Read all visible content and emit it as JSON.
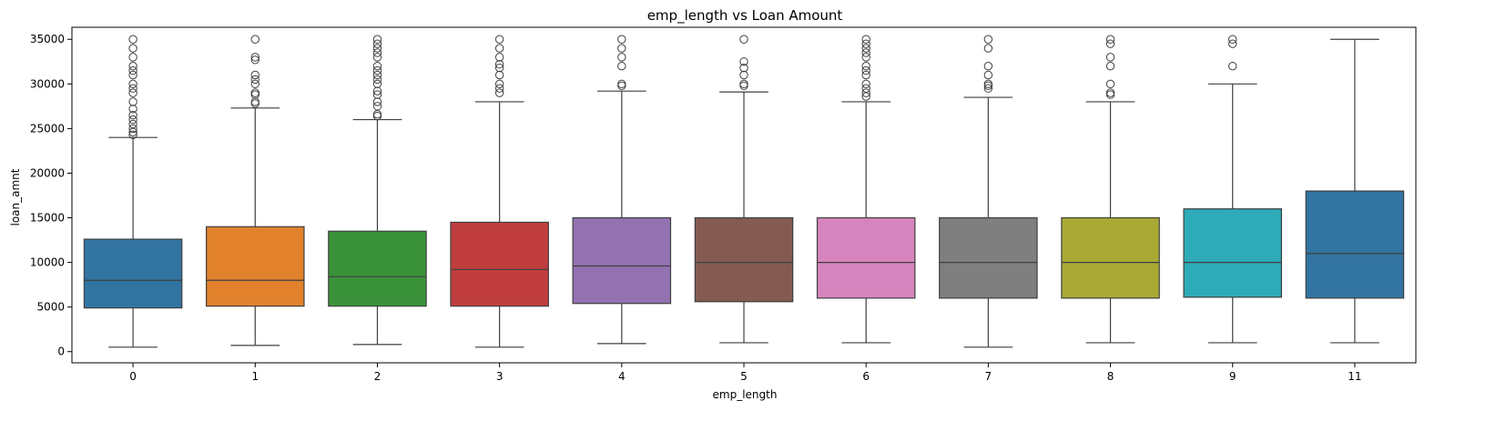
{
  "chart_data": {
    "type": "box",
    "title": "emp_length vs Loan Amount",
    "xlabel": "emp_length",
    "ylabel": "loan_amnt",
    "ylim": [
      -1250,
      36350
    ],
    "yticks": [
      0,
      5000,
      10000,
      15000,
      20000,
      25000,
      30000,
      35000
    ],
    "grid": false,
    "categories": [
      "0",
      "1",
      "2",
      "3",
      "4",
      "5",
      "6",
      "7",
      "8",
      "9",
      "11"
    ],
    "colors": [
      "#3274a1",
      "#e1812c",
      "#3a923a",
      "#c03d3e",
      "#9372b2",
      "#845b53",
      "#d684bd",
      "#7f7f7f",
      "#a9aa35",
      "#2eabb8",
      "#3274a1"
    ],
    "boxes": [
      {
        "category": "0",
        "whislo": 500,
        "q1": 4900,
        "med": 8000,
        "q3": 12600,
        "whishi": 24000,
        "fliers": [
          24300,
          24600,
          25000,
          25500,
          26000,
          26500,
          27200,
          28000,
          29000,
          29500,
          30000,
          31000,
          31500,
          32000,
          33000,
          34000,
          35000
        ]
      },
      {
        "category": "1",
        "whislo": 700,
        "q1": 5100,
        "med": 8000,
        "q3": 14000,
        "whishi": 27300,
        "fliers": [
          27800,
          28000,
          28800,
          29000,
          30000,
          30500,
          31000,
          32700,
          33000,
          35000
        ]
      },
      {
        "category": "2",
        "whislo": 800,
        "q1": 5100,
        "med": 8400,
        "q3": 13500,
        "whishi": 26000,
        "fliers": [
          26400,
          26600,
          27500,
          28000,
          28800,
          29200,
          30000,
          30500,
          31000,
          31500,
          32000,
          33000,
          33500,
          34000,
          34500,
          35000
        ]
      },
      {
        "category": "3",
        "whislo": 500,
        "q1": 5100,
        "med": 9200,
        "q3": 14500,
        "whishi": 28000,
        "fliers": [
          29000,
          29500,
          30000,
          31000,
          31800,
          32200,
          33000,
          34000,
          35000
        ]
      },
      {
        "category": "4",
        "whislo": 900,
        "q1": 5400,
        "med": 9600,
        "q3": 15000,
        "whishi": 29200,
        "fliers": [
          29800,
          30000,
          32000,
          33000,
          34000,
          35000
        ]
      },
      {
        "category": "5",
        "whislo": 1000,
        "q1": 5600,
        "med": 10000,
        "q3": 15000,
        "whishi": 29100,
        "fliers": [
          29800,
          30000,
          31000,
          31800,
          32500,
          35000
        ]
      },
      {
        "category": "6",
        "whislo": 1000,
        "q1": 6000,
        "med": 10000,
        "q3": 15000,
        "whishi": 28000,
        "fliers": [
          28600,
          29000,
          29500,
          30000,
          31000,
          31500,
          32000,
          33000,
          33500,
          34000,
          34500,
          35000
        ]
      },
      {
        "category": "7",
        "whislo": 500,
        "q1": 6000,
        "med": 10000,
        "q3": 15000,
        "whishi": 28500,
        "fliers": [
          29500,
          29800,
          30000,
          31000,
          32000,
          34000,
          35000
        ]
      },
      {
        "category": "8",
        "whislo": 1000,
        "q1": 6000,
        "med": 10000,
        "q3": 15000,
        "whishi": 28000,
        "fliers": [
          28800,
          29000,
          30000,
          32000,
          33000,
          34500,
          35000
        ]
      },
      {
        "category": "9",
        "whislo": 1000,
        "q1": 6100,
        "med": 10000,
        "q3": 16000,
        "whishi": 30000,
        "fliers": [
          32000,
          34500,
          35000
        ]
      },
      {
        "category": "11",
        "whislo": 1000,
        "q1": 6000,
        "med": 11000,
        "q3": 18000,
        "whishi": 35000,
        "fliers": []
      }
    ]
  }
}
